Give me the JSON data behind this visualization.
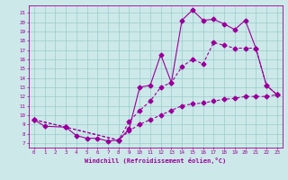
{
  "xlabel": "Windchill (Refroidissement éolien,°C)",
  "bg_color": "#cce8e8",
  "line_color": "#990099",
  "grid_color": "#99cccc",
  "xlim": [
    -0.5,
    23.5
  ],
  "ylim": [
    6.5,
    21.8
  ],
  "yticks": [
    7,
    8,
    9,
    10,
    11,
    12,
    13,
    14,
    15,
    16,
    17,
    18,
    19,
    20,
    21
  ],
  "xticks": [
    0,
    1,
    2,
    3,
    4,
    5,
    6,
    7,
    8,
    9,
    10,
    11,
    12,
    13,
    14,
    15,
    16,
    17,
    18,
    19,
    20,
    21,
    22,
    23
  ],
  "line1_x": [
    0,
    1,
    3,
    4,
    5,
    6,
    7,
    8,
    9,
    10,
    11,
    12,
    13,
    14,
    15,
    16,
    17,
    18,
    19,
    20,
    21,
    22,
    23
  ],
  "line1_y": [
    9.5,
    8.8,
    8.7,
    7.8,
    7.5,
    7.5,
    7.2,
    7.3,
    8.5,
    13.0,
    13.2,
    16.5,
    13.5,
    20.2,
    21.3,
    20.2,
    20.3,
    19.8,
    19.2,
    20.2,
    17.2,
    13.2,
    12.2
  ],
  "line2_x": [
    0,
    3,
    8,
    9,
    10,
    11,
    12,
    13,
    14,
    15,
    16,
    17,
    18,
    19,
    20,
    21,
    22,
    23
  ],
  "line2_y": [
    9.5,
    8.7,
    7.3,
    9.3,
    10.5,
    11.5,
    13.0,
    13.5,
    15.2,
    16.0,
    15.5,
    17.8,
    17.5,
    17.2,
    17.2,
    17.2,
    13.2,
    12.2
  ],
  "line3_x": [
    0,
    3,
    8,
    9,
    10,
    11,
    12,
    13,
    14,
    15,
    16,
    17,
    18,
    19,
    20,
    21,
    22,
    23
  ],
  "line3_y": [
    9.5,
    8.7,
    7.3,
    8.3,
    9.0,
    9.5,
    10.0,
    10.5,
    11.0,
    11.2,
    11.3,
    11.5,
    11.7,
    11.8,
    12.0,
    12.0,
    12.0,
    12.2
  ]
}
